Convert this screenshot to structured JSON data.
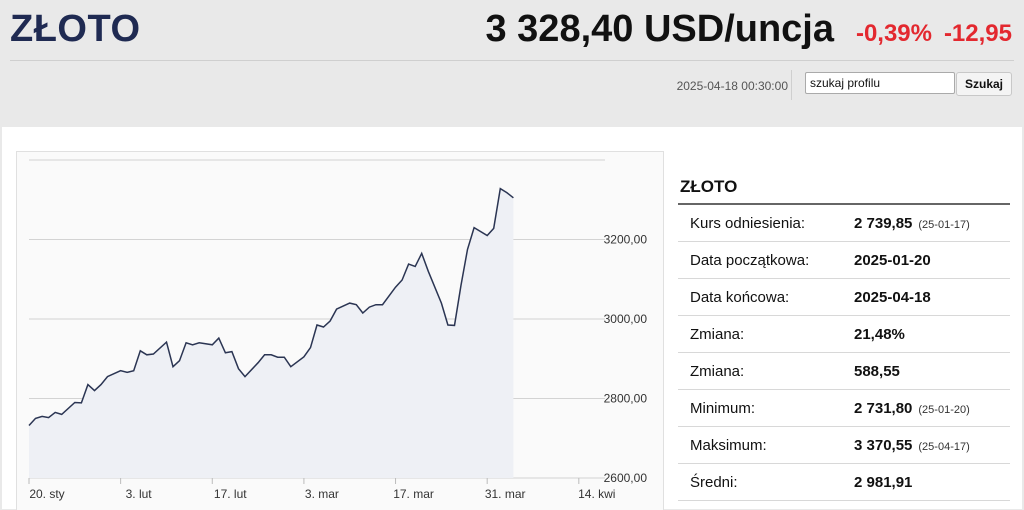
{
  "header": {
    "title": "ZŁOTO",
    "price": "3 328,40 USD/uncja",
    "change_pct": "-0,39%",
    "change_abs": "-12,95",
    "timestamp": "2025-04-18 00:30:00",
    "search_value": "szukaj profilu",
    "search_button": "Szukaj"
  },
  "stats": {
    "title": "ZŁOTO",
    "rows": [
      {
        "label": "Kurs odniesienia:",
        "value": "2 739,85",
        "date": "(25-01-17)"
      },
      {
        "label": "Data początkowa:",
        "value": "2025-01-20",
        "date": ""
      },
      {
        "label": "Data końcowa:",
        "value": "2025-04-18",
        "date": ""
      },
      {
        "label": "Zmiana:",
        "value": "21,48%",
        "date": ""
      },
      {
        "label": "Zmiana:",
        "value": "588,55",
        "date": ""
      },
      {
        "label": "Minimum:",
        "value": "2 731,80",
        "date": "(25-01-20)"
      },
      {
        "label": "Maksimum:",
        "value": "3 370,55",
        "date": "(25-04-17)"
      },
      {
        "label": "Średni:",
        "value": "2 981,91",
        "date": ""
      }
    ]
  },
  "chart_data": {
    "type": "area",
    "ytick_labels": [
      "3200,00",
      "3000,00",
      "2800,00",
      "2600,00"
    ],
    "yticks": [
      3200,
      3000,
      2800,
      2600
    ],
    "xtick_labels": [
      "20. sty",
      "3. lut",
      "17. lut",
      "3. mar",
      "17. mar",
      "31. mar",
      "14. kwi"
    ],
    "xtick_day_index": [
      0,
      14,
      28,
      42,
      56,
      70,
      84
    ],
    "ylim": [
      2600,
      3400
    ],
    "xlim": [
      0,
      88
    ],
    "grid": true,
    "colors": {
      "line": "#2b3553",
      "fill": "#eef0f5",
      "grid": "#d3d3d3"
    },
    "points": [
      [
        0,
        2732
      ],
      [
        1,
        2750
      ],
      [
        2,
        2755
      ],
      [
        3,
        2752
      ],
      [
        4,
        2765
      ],
      [
        5,
        2760
      ],
      [
        7,
        2790
      ],
      [
        8,
        2789
      ],
      [
        9,
        2835
      ],
      [
        10,
        2820
      ],
      [
        11,
        2835
      ],
      [
        12,
        2855
      ],
      [
        14,
        2870
      ],
      [
        15,
        2866
      ],
      [
        16,
        2870
      ],
      [
        17,
        2920
      ],
      [
        18,
        2910
      ],
      [
        19,
        2912
      ],
      [
        21,
        2942
      ],
      [
        22,
        2880
      ],
      [
        23,
        2895
      ],
      [
        24,
        2940
      ],
      [
        25,
        2935
      ],
      [
        26,
        2940
      ],
      [
        28,
        2935
      ],
      [
        29,
        2952
      ],
      [
        30,
        2915
      ],
      [
        31,
        2918
      ],
      [
        32,
        2875
      ],
      [
        33,
        2855
      ],
      [
        35,
        2890
      ],
      [
        36,
        2910
      ],
      [
        37,
        2910
      ],
      [
        38,
        2904
      ],
      [
        39,
        2904
      ],
      [
        40,
        2880
      ],
      [
        42,
        2905
      ],
      [
        43,
        2928
      ],
      [
        44,
        2985
      ],
      [
        45,
        2980
      ],
      [
        46,
        2995
      ],
      [
        47,
        3025
      ],
      [
        49,
        3040
      ],
      [
        50,
        3036
      ],
      [
        51,
        3015
      ],
      [
        52,
        3030
      ],
      [
        53,
        3036
      ],
      [
        54,
        3036
      ],
      [
        56,
        3080
      ],
      [
        57,
        3098
      ],
      [
        58,
        3138
      ],
      [
        59,
        3132
      ],
      [
        60,
        3165
      ],
      [
        61,
        3120
      ],
      [
        63,
        3040
      ],
      [
        64,
        2985
      ],
      [
        65,
        2984
      ],
      [
        66,
        3085
      ],
      [
        67,
        3175
      ],
      [
        68,
        3230
      ],
      [
        70,
        3210
      ],
      [
        71,
        3228
      ],
      [
        72,
        3328
      ],
      [
        73,
        3318
      ],
      [
        74,
        3305
      ]
    ]
  }
}
